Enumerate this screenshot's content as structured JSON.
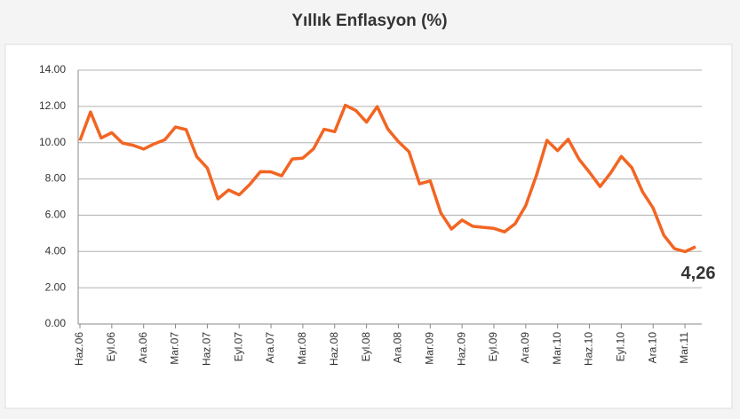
{
  "chart_data": {
    "type": "line",
    "title": "Yıllık Enflasyon (%)",
    "categories": [
      "Haz.06",
      null,
      null,
      "Eyl.06",
      null,
      null,
      "Ara.06",
      null,
      null,
      "Mar.07",
      null,
      null,
      "Haz.07",
      null,
      null,
      "Eyl.07",
      null,
      null,
      "Ara.07",
      null,
      null,
      "Mar.08",
      null,
      null,
      "Haz.08",
      null,
      null,
      "Eyl.08",
      null,
      null,
      "Ara.08",
      null,
      null,
      "Mar.09",
      null,
      null,
      "Haz.09",
      null,
      null,
      "Eyl.09",
      null,
      null,
      "Ara.09",
      null,
      null,
      "Mar.10",
      null,
      null,
      "Haz.10",
      null,
      null,
      "Eyl.10",
      null,
      null,
      "Ara.10",
      null,
      null,
      "Mar.11",
      null
    ],
    "series": [
      {
        "name": "Yıllık Enflasyon",
        "color": "#f26522",
        "values": [
          10.12,
          11.69,
          10.26,
          10.55,
          9.98,
          9.86,
          9.65,
          9.93,
          10.16,
          10.86,
          10.72,
          9.23,
          8.6,
          6.9,
          7.39,
          7.12,
          7.7,
          8.4,
          8.39,
          8.17,
          9.1,
          9.15,
          9.66,
          10.74,
          10.61,
          12.06,
          11.77,
          11.13,
          11.99,
          10.76,
          10.06,
          9.5,
          7.73,
          7.89,
          6.13,
          5.24,
          5.73,
          5.39,
          5.33,
          5.27,
          5.08,
          5.53,
          6.53,
          8.19,
          10.13,
          9.56,
          10.19,
          9.1,
          8.37,
          7.58,
          8.33,
          9.24,
          8.62,
          7.29,
          6.4,
          4.9,
          4.16,
          3.99,
          4.26
        ],
        "value_labels": [
          null,
          null,
          null,
          null,
          null,
          null,
          null,
          null,
          null,
          null,
          null,
          null,
          null,
          null,
          null,
          null,
          null,
          null,
          null,
          null,
          null,
          null,
          null,
          null,
          null,
          null,
          null,
          null,
          null,
          null,
          null,
          null,
          null,
          null,
          null,
          null,
          null,
          null,
          null,
          null,
          null,
          null,
          null,
          null,
          null,
          null,
          null,
          null,
          null,
          null,
          null,
          null,
          null,
          null,
          null,
          null,
          null,
          null,
          "4,26"
        ]
      }
    ],
    "ylim": [
      0,
      14
    ],
    "yticks": [
      {
        "value": 0,
        "label": "0.00"
      },
      {
        "value": 2,
        "label": "2.00"
      },
      {
        "value": 4,
        "label": "4.00"
      },
      {
        "value": 6,
        "label": "6.00"
      },
      {
        "value": 8,
        "label": "8.00"
      },
      {
        "value": 10,
        "label": "10.00"
      },
      {
        "value": 12,
        "label": "12.00"
      },
      {
        "value": 14,
        "label": "14.00"
      }
    ],
    "grid": true
  }
}
